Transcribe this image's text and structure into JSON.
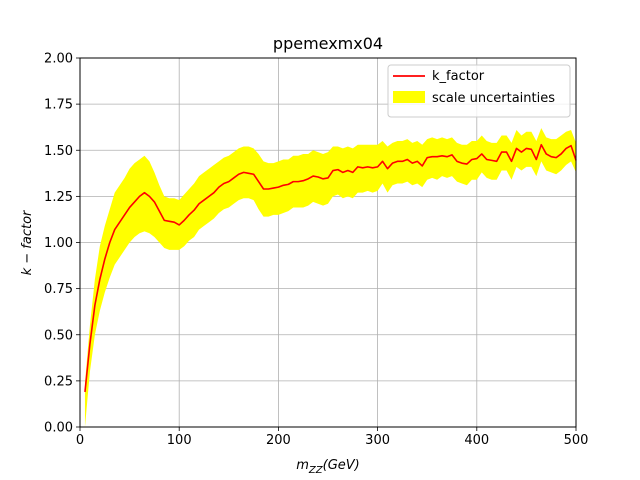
{
  "chart_data": {
    "type": "line",
    "title": "ppemexmx04",
    "xlabel": "m_ZZ(GeV)",
    "xlabel_main": "m",
    "xlabel_sub": "ZZ",
    "xlabel_rest": "(GeV)",
    "ylabel": "k − factor",
    "xlim": [
      0,
      500
    ],
    "ylim": [
      0.0,
      2.0
    ],
    "x_ticks": [
      0,
      100,
      200,
      300,
      400,
      500
    ],
    "x_tick_labels": [
      "0",
      "100",
      "200",
      "300",
      "400",
      "500"
    ],
    "y_ticks": [
      0.0,
      0.25,
      0.5,
      0.75,
      1.0,
      1.25,
      1.5,
      1.75,
      2.0
    ],
    "y_tick_labels": [
      "0.00",
      "0.25",
      "0.50",
      "0.75",
      "1.00",
      "1.25",
      "1.50",
      "1.75",
      "2.00"
    ],
    "grid": true,
    "legend_position": "top-right",
    "colors": {
      "line": "#ff0000",
      "band": "#ffff00",
      "grid": "#b0b0b0"
    },
    "series": [
      {
        "name": "k_factor",
        "kind": "line",
        "x": [
          5,
          10,
          15,
          20,
          25,
          30,
          35,
          40,
          45,
          50,
          55,
          60,
          65,
          70,
          75,
          80,
          85,
          90,
          95,
          100,
          105,
          110,
          115,
          120,
          125,
          130,
          135,
          140,
          145,
          150,
          155,
          160,
          165,
          170,
          175,
          180,
          185,
          190,
          195,
          200,
          205,
          210,
          215,
          220,
          225,
          230,
          235,
          240,
          245,
          250,
          255,
          260,
          265,
          270,
          275,
          280,
          285,
          290,
          295,
          300,
          305,
          310,
          315,
          320,
          325,
          330,
          335,
          340,
          345,
          350,
          355,
          360,
          365,
          370,
          375,
          380,
          385,
          390,
          395,
          400,
          405,
          410,
          415,
          420,
          425,
          430,
          435,
          440,
          445,
          450,
          455,
          460,
          465,
          470,
          475,
          480,
          485,
          490,
          495,
          500
        ],
        "y": [
          0.19,
          0.45,
          0.66,
          0.8,
          0.91,
          1.0,
          1.07,
          1.11,
          1.15,
          1.19,
          1.22,
          1.25,
          1.27,
          1.25,
          1.22,
          1.17,
          1.12,
          1.115,
          1.11,
          1.095,
          1.12,
          1.15,
          1.175,
          1.21,
          1.23,
          1.25,
          1.27,
          1.3,
          1.32,
          1.33,
          1.35,
          1.37,
          1.38,
          1.375,
          1.37,
          1.33,
          1.29,
          1.29,
          1.295,
          1.3,
          1.31,
          1.315,
          1.33,
          1.33,
          1.335,
          1.345,
          1.36,
          1.355,
          1.345,
          1.35,
          1.39,
          1.395,
          1.38,
          1.39,
          1.38,
          1.41,
          1.405,
          1.41,
          1.405,
          1.41,
          1.44,
          1.4,
          1.43,
          1.44,
          1.44,
          1.45,
          1.43,
          1.44,
          1.415,
          1.46,
          1.465,
          1.465,
          1.47,
          1.465,
          1.475,
          1.44,
          1.43,
          1.425,
          1.45,
          1.455,
          1.48,
          1.45,
          1.445,
          1.44,
          1.49,
          1.49,
          1.44,
          1.51,
          1.49,
          1.51,
          1.505,
          1.45,
          1.53,
          1.48,
          1.465,
          1.46,
          1.48,
          1.51,
          1.525,
          1.445
        ]
      },
      {
        "name": "scale uncertainties",
        "kind": "band",
        "x": [
          5,
          10,
          15,
          20,
          25,
          30,
          35,
          40,
          45,
          50,
          55,
          60,
          65,
          70,
          75,
          80,
          85,
          90,
          95,
          100,
          105,
          110,
          115,
          120,
          125,
          130,
          135,
          140,
          145,
          150,
          155,
          160,
          165,
          170,
          175,
          180,
          185,
          190,
          195,
          200,
          205,
          210,
          215,
          220,
          225,
          230,
          235,
          240,
          245,
          250,
          255,
          260,
          265,
          270,
          275,
          280,
          285,
          290,
          295,
          300,
          305,
          310,
          315,
          320,
          325,
          330,
          335,
          340,
          345,
          350,
          355,
          360,
          365,
          370,
          375,
          380,
          385,
          390,
          395,
          400,
          405,
          410,
          415,
          420,
          425,
          430,
          435,
          440,
          445,
          450,
          455,
          460,
          465,
          470,
          475,
          480,
          485,
          490,
          495,
          500
        ],
        "upper": [
          0.24,
          0.55,
          0.8,
          0.98,
          1.09,
          1.18,
          1.27,
          1.31,
          1.35,
          1.4,
          1.43,
          1.45,
          1.47,
          1.44,
          1.38,
          1.31,
          1.25,
          1.24,
          1.24,
          1.23,
          1.26,
          1.29,
          1.32,
          1.36,
          1.38,
          1.4,
          1.42,
          1.44,
          1.46,
          1.47,
          1.49,
          1.51,
          1.52,
          1.52,
          1.51,
          1.48,
          1.44,
          1.43,
          1.43,
          1.44,
          1.45,
          1.45,
          1.47,
          1.47,
          1.48,
          1.48,
          1.5,
          1.49,
          1.48,
          1.49,
          1.52,
          1.52,
          1.51,
          1.52,
          1.51,
          1.53,
          1.53,
          1.53,
          1.53,
          1.53,
          1.55,
          1.52,
          1.54,
          1.55,
          1.55,
          1.56,
          1.54,
          1.55,
          1.53,
          1.56,
          1.57,
          1.56,
          1.57,
          1.56,
          1.57,
          1.54,
          1.53,
          1.53,
          1.55,
          1.55,
          1.58,
          1.55,
          1.54,
          1.54,
          1.58,
          1.58,
          1.54,
          1.61,
          1.58,
          1.6,
          1.6,
          1.55,
          1.62,
          1.57,
          1.56,
          1.56,
          1.58,
          1.6,
          1.61,
          1.54
        ],
        "lower": [
          0.0,
          0.3,
          0.5,
          0.63,
          0.73,
          0.81,
          0.88,
          0.92,
          0.96,
          1.0,
          1.03,
          1.05,
          1.06,
          1.05,
          1.03,
          1.0,
          0.97,
          0.96,
          0.96,
          0.96,
          0.98,
          1.01,
          1.03,
          1.07,
          1.09,
          1.11,
          1.13,
          1.16,
          1.18,
          1.19,
          1.21,
          1.23,
          1.24,
          1.24,
          1.23,
          1.18,
          1.14,
          1.14,
          1.15,
          1.15,
          1.16,
          1.17,
          1.19,
          1.19,
          1.19,
          1.2,
          1.22,
          1.21,
          1.2,
          1.21,
          1.25,
          1.26,
          1.24,
          1.25,
          1.24,
          1.27,
          1.27,
          1.28,
          1.27,
          1.28,
          1.32,
          1.27,
          1.31,
          1.32,
          1.32,
          1.33,
          1.31,
          1.32,
          1.3,
          1.34,
          1.35,
          1.34,
          1.36,
          1.35,
          1.36,
          1.33,
          1.32,
          1.31,
          1.34,
          1.34,
          1.38,
          1.35,
          1.34,
          1.34,
          1.39,
          1.39,
          1.34,
          1.41,
          1.39,
          1.41,
          1.41,
          1.36,
          1.44,
          1.39,
          1.38,
          1.37,
          1.39,
          1.42,
          1.44,
          1.38
        ]
      }
    ]
  }
}
